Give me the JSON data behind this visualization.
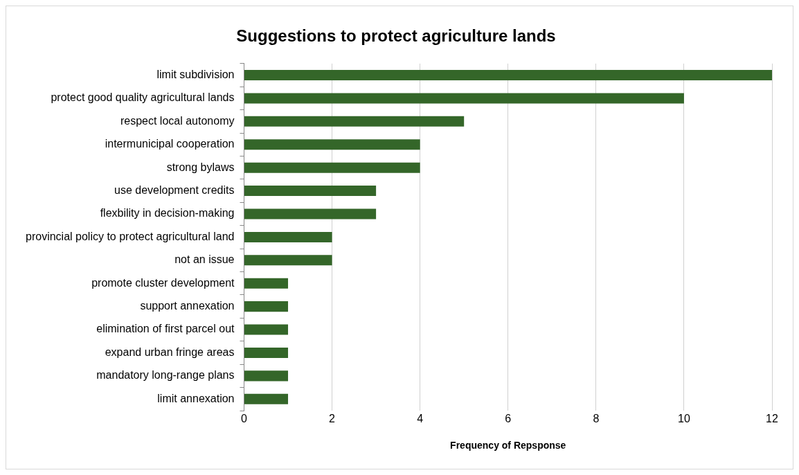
{
  "chart_data": {
    "type": "bar",
    "orientation": "horizontal",
    "title": "Suggestions to protect agriculture lands",
    "xlabel": "Frequency of Repsponse",
    "categories": [
      "limit subdivision",
      "protect good quality agricultural lands",
      "respect local autonomy",
      "intermunicipal cooperation",
      "strong bylaws",
      "use development credits",
      "flexbility in decision-making",
      "provincial policy to protect agricultural land",
      "not an issue",
      "promote cluster development",
      "support annexation",
      "elimination of first parcel out",
      "expand urban fringe areas",
      "mandatory long-range plans",
      "limit annexation"
    ],
    "values": [
      12,
      10,
      5,
      4,
      4,
      3,
      3,
      2,
      2,
      1,
      1,
      1,
      1,
      1,
      1
    ],
    "color": "#346629",
    "xlim": [
      0,
      12
    ],
    "xticks": [
      0,
      2,
      4,
      6,
      8,
      10,
      12
    ],
    "grid": "x",
    "legend": false
  }
}
